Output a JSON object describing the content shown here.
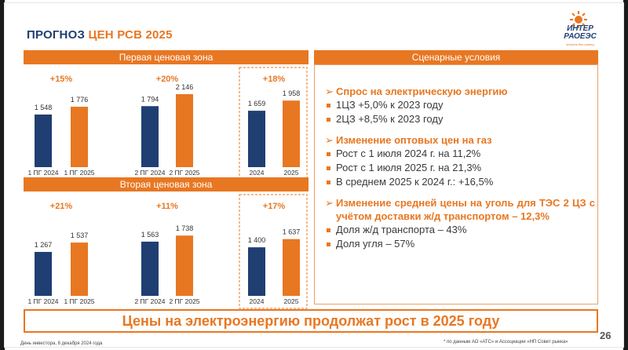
{
  "title": {
    "part1": "ПРОГНОЗ",
    "part2": "ЦЕН РСВ 2025"
  },
  "logo": {
    "line1": "ИНТЕР",
    "line2": "РАОЕЭС",
    "sub": "энергия без границ"
  },
  "colors": {
    "accent": "#e87722",
    "navy": "#1f3f73",
    "text": "#3a3a3a"
  },
  "zones": [
    {
      "header": "Первая ценовая зона"
    },
    {
      "header": "Вторая ценовая зона"
    }
  ],
  "chart_data": [
    {
      "type": "bar",
      "title": "Первая ценовая зона",
      "categories": [
        "1 ПГ 2024",
        "1 ПГ 2025",
        "2 ПГ 2024",
        "2 ПГ 2025",
        "2024",
        "2025"
      ],
      "values": [
        1548,
        1776,
        1794,
        2146,
        1659,
        1958
      ],
      "value_labels": [
        "1 548",
        "1 776",
        "1 794",
        "2 146",
        "1 659",
        "1 958"
      ],
      "bar_colors": [
        "#1f3f73",
        "#e87722",
        "#1f3f73",
        "#e87722",
        "#1f3f73",
        "#e87722"
      ],
      "growth_labels": [
        "+15%",
        "+20%",
        "+18%"
      ],
      "highlighted_pair": 2,
      "ylim": [
        0,
        2700
      ]
    },
    {
      "type": "bar",
      "title": "Вторая ценовая зона",
      "categories": [
        "1 ПГ 2024",
        "1 ПГ 2025",
        "2 ПГ 2024",
        "2 ПГ 2025",
        "2024",
        "2025"
      ],
      "values": [
        1267,
        1537,
        1563,
        1738,
        1400,
        1637
      ],
      "value_labels": [
        "1 267",
        "1 537",
        "1 563",
        "1 738",
        "1 400",
        "1 637"
      ],
      "bar_colors": [
        "#1f3f73",
        "#e87722",
        "#1f3f73",
        "#e87722",
        "#1f3f73",
        "#e87722"
      ],
      "growth_labels": [
        "+21%",
        "+11%",
        "+17%"
      ],
      "highlighted_pair": 2,
      "ylim": [
        0,
        2150
      ]
    }
  ],
  "scenario": {
    "header": "Сценарные условия",
    "sections": [
      {
        "head": "Спрос на электрическую энергию",
        "items": [
          "1ЦЗ +5,0% к 2023 году",
          "2ЦЗ +8,5% к 2023 году"
        ]
      },
      {
        "head": "Изменение оптовых цен на газ",
        "items": [
          "Рост с 1 июля 2024 г. на 11,2%",
          "Рост с 1 июля 2025 г. на 21,3%",
          "В среднем 2025 к 2024 г.: +16,5%"
        ]
      },
      {
        "head": "Изменение средней цены на уголь для ТЭС 2 ЦЗ с учётом доставки ж/д транспортом – 12,3%",
        "items": [
          "Доля ж/д транспорта – 43%",
          "Доля угля – 57%"
        ]
      }
    ]
  },
  "banner": "Цены на электроэнергию продолжат рост в 2025 году",
  "page_number": "26",
  "footer_left": "День инвестора, 6 декабря 2024 года",
  "footer_right": "* по данным АО «АТС» и Ассоциации «НП Совет рынка»"
}
